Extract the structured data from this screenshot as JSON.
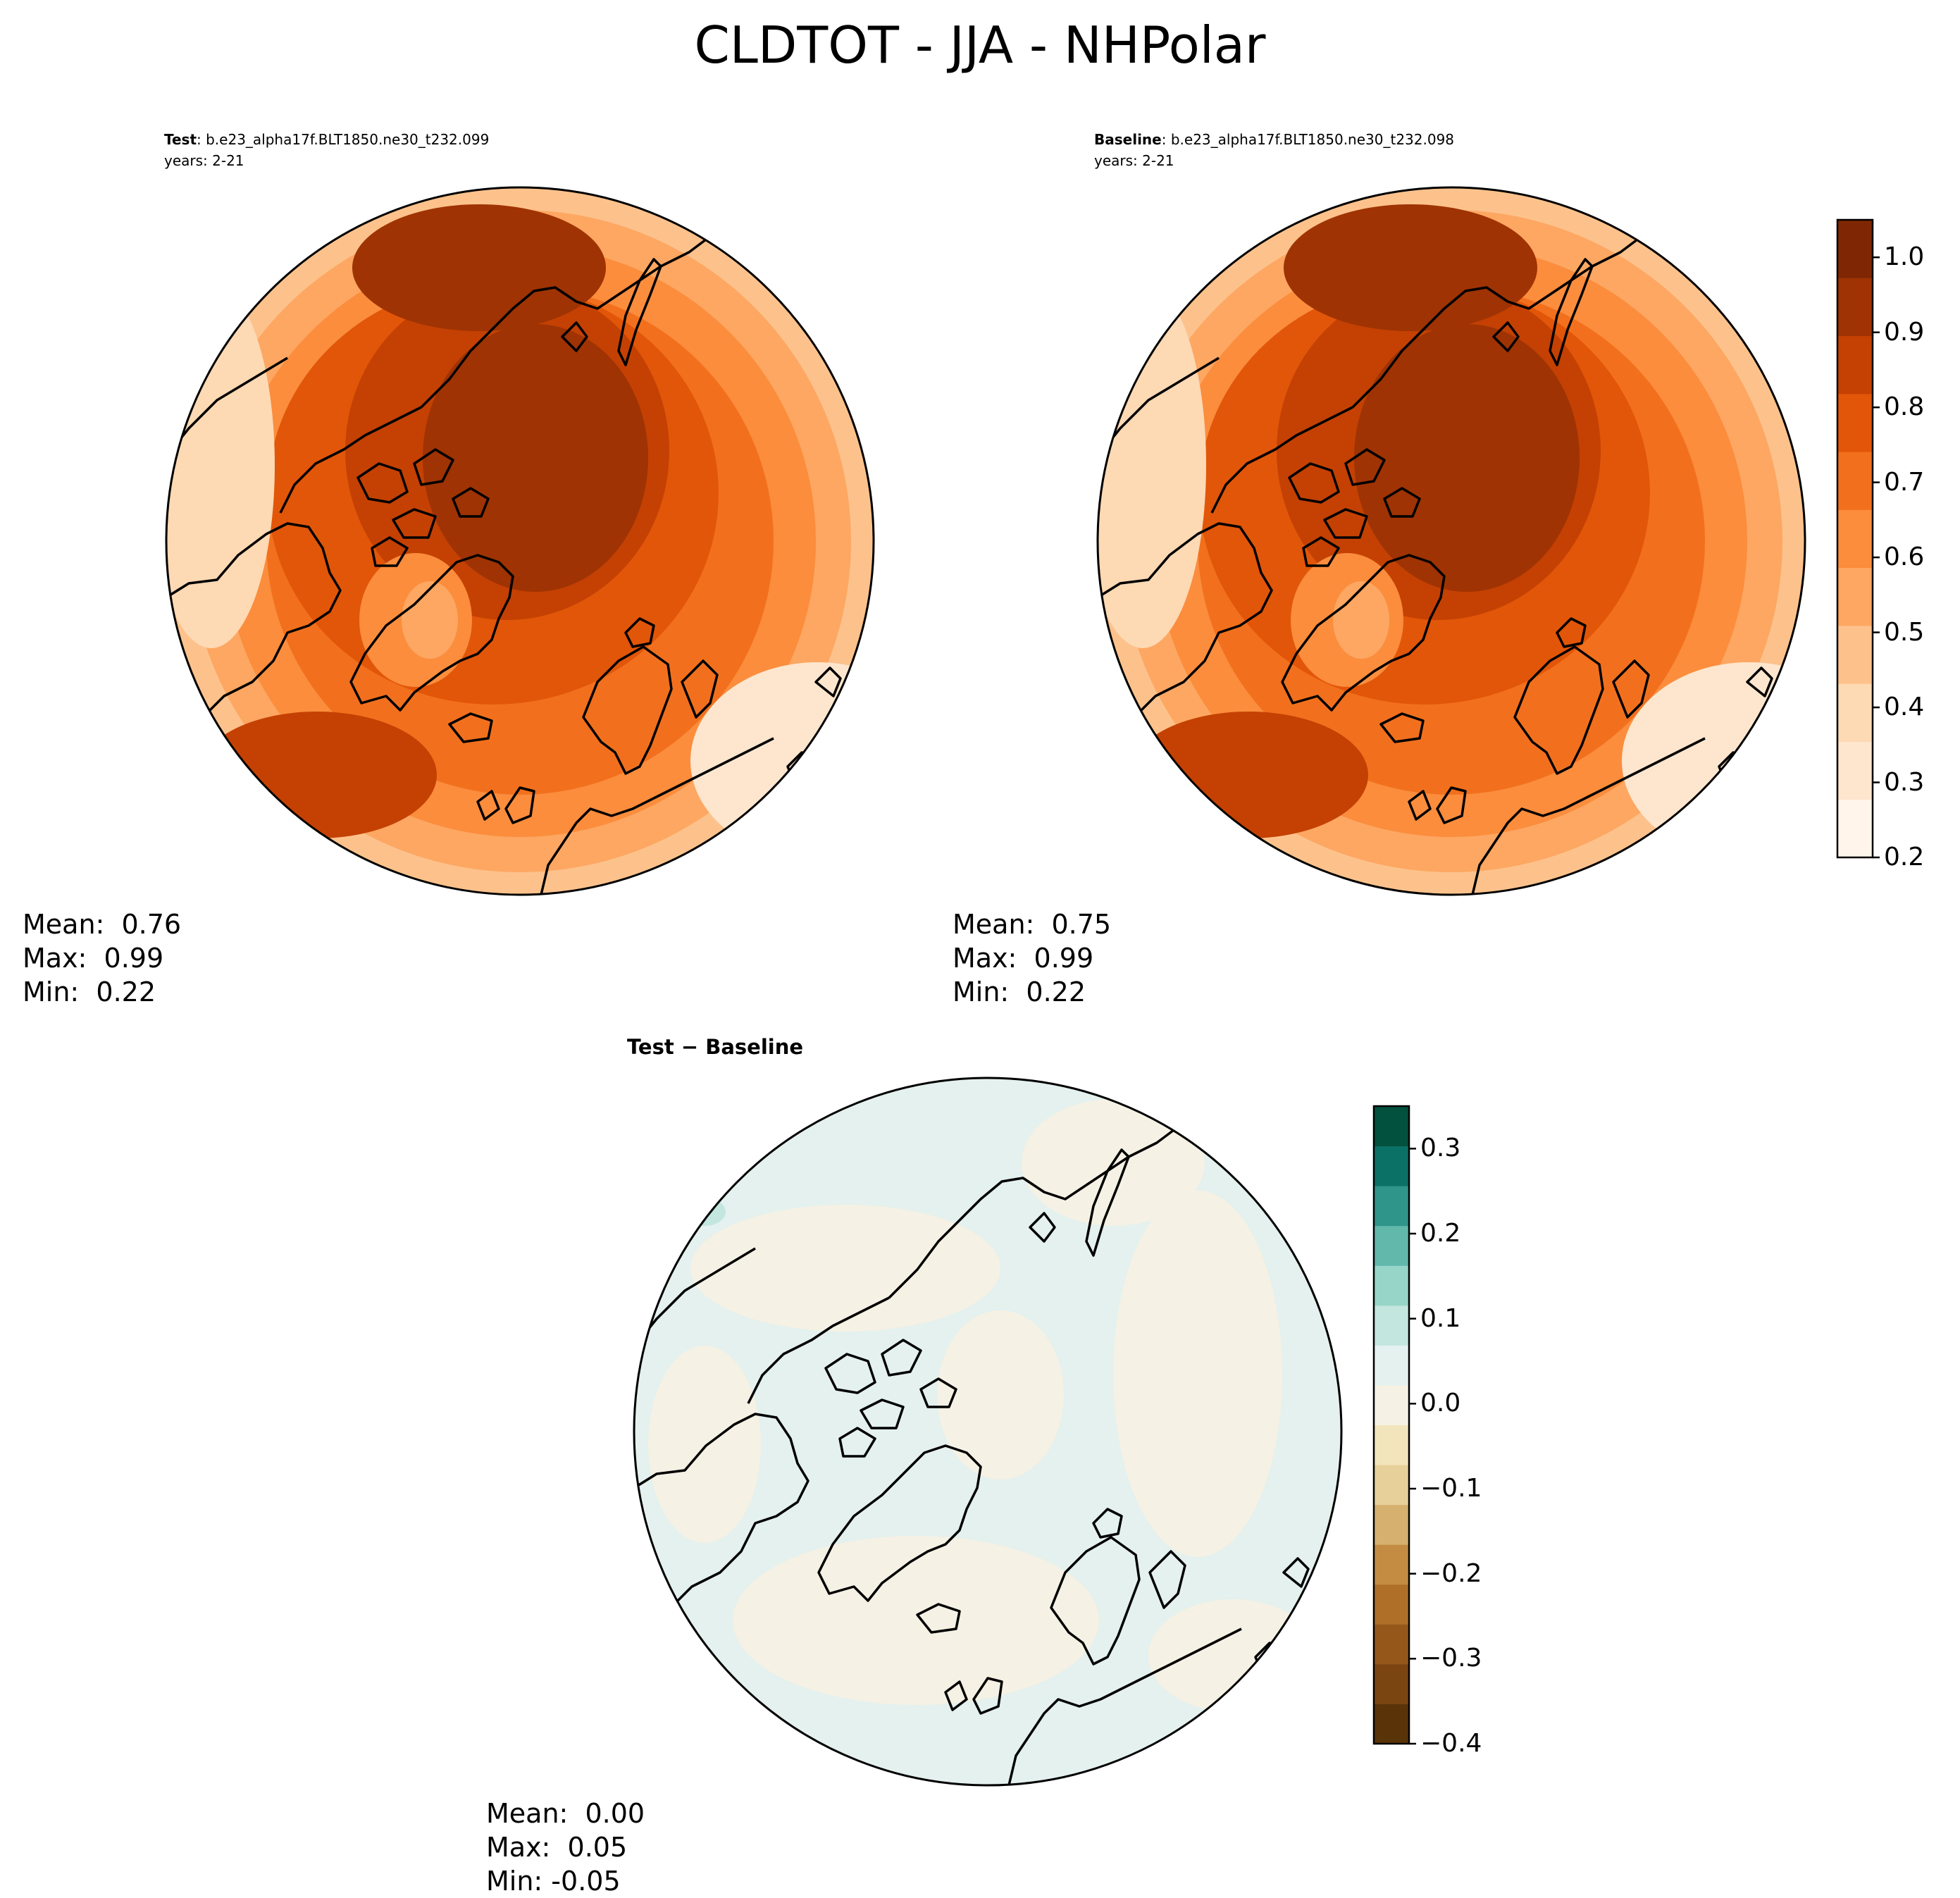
{
  "figure": {
    "title": "CLDTOT - JJA - NHPolar"
  },
  "panels": [
    {
      "id": "test",
      "label": "Test",
      "case": ": b.e23_alpha17f.BLT1850.ne30_t232.099",
      "years": "years: 2-21",
      "stats": {
        "mean": "Mean:  0.76",
        "max": "Max:  0.99",
        "min": "Min:  0.22"
      }
    },
    {
      "id": "baseline",
      "label": "Baseline",
      "case": ": b.e23_alpha17f.BLT1850.ne30_t232.098",
      "years": "years: 2-21",
      "stats": {
        "mean": "Mean:  0.75",
        "max": "Max:  0.99",
        "min": "Min:  0.22"
      }
    },
    {
      "id": "diff",
      "label": "Test − Baseline",
      "stats": {
        "mean": "Mean:  0.00",
        "max": "Max:  0.05",
        "min": "Min: -0.05"
      }
    }
  ],
  "colorbars": {
    "main": {
      "ticks": [
        "0.2",
        "0.3",
        "0.4",
        "0.5",
        "0.6",
        "0.7",
        "0.8",
        "0.9",
        "1.0"
      ],
      "range": [
        0.2,
        1.05
      ],
      "colormap": "Oranges",
      "colors": [
        "#fff5eb",
        "#fee6ce",
        "#fdd9b4",
        "#fdc28c",
        "#fda762",
        "#fb8d3d",
        "#f2701d",
        "#e25609",
        "#c44103",
        "#9f3303",
        "#7f2704"
      ]
    },
    "diff": {
      "ticks": [
        "−0.4",
        "−0.3",
        "−0.2",
        "−0.1",
        "0.0",
        "0.1",
        "0.2",
        "0.3"
      ],
      "range": [
        -0.4,
        0.35
      ],
      "colormap": "BrBG",
      "colors": [
        "#5a3409",
        "#7a4510",
        "#96581a",
        "#b06f28",
        "#c48c43",
        "#d6b06f",
        "#e7d09a",
        "#f2e4bb",
        "#f5f1e4",
        "#e4f1ee",
        "#c3e6df",
        "#97d5c8",
        "#62b8ab",
        "#2f958a",
        "#0b7167",
        "#01513e"
      ]
    }
  },
  "map_data": {
    "projection": "North Polar Stereographic",
    "region": "NHPolar",
    "season": "JJA",
    "variable": "CLDTOT"
  }
}
